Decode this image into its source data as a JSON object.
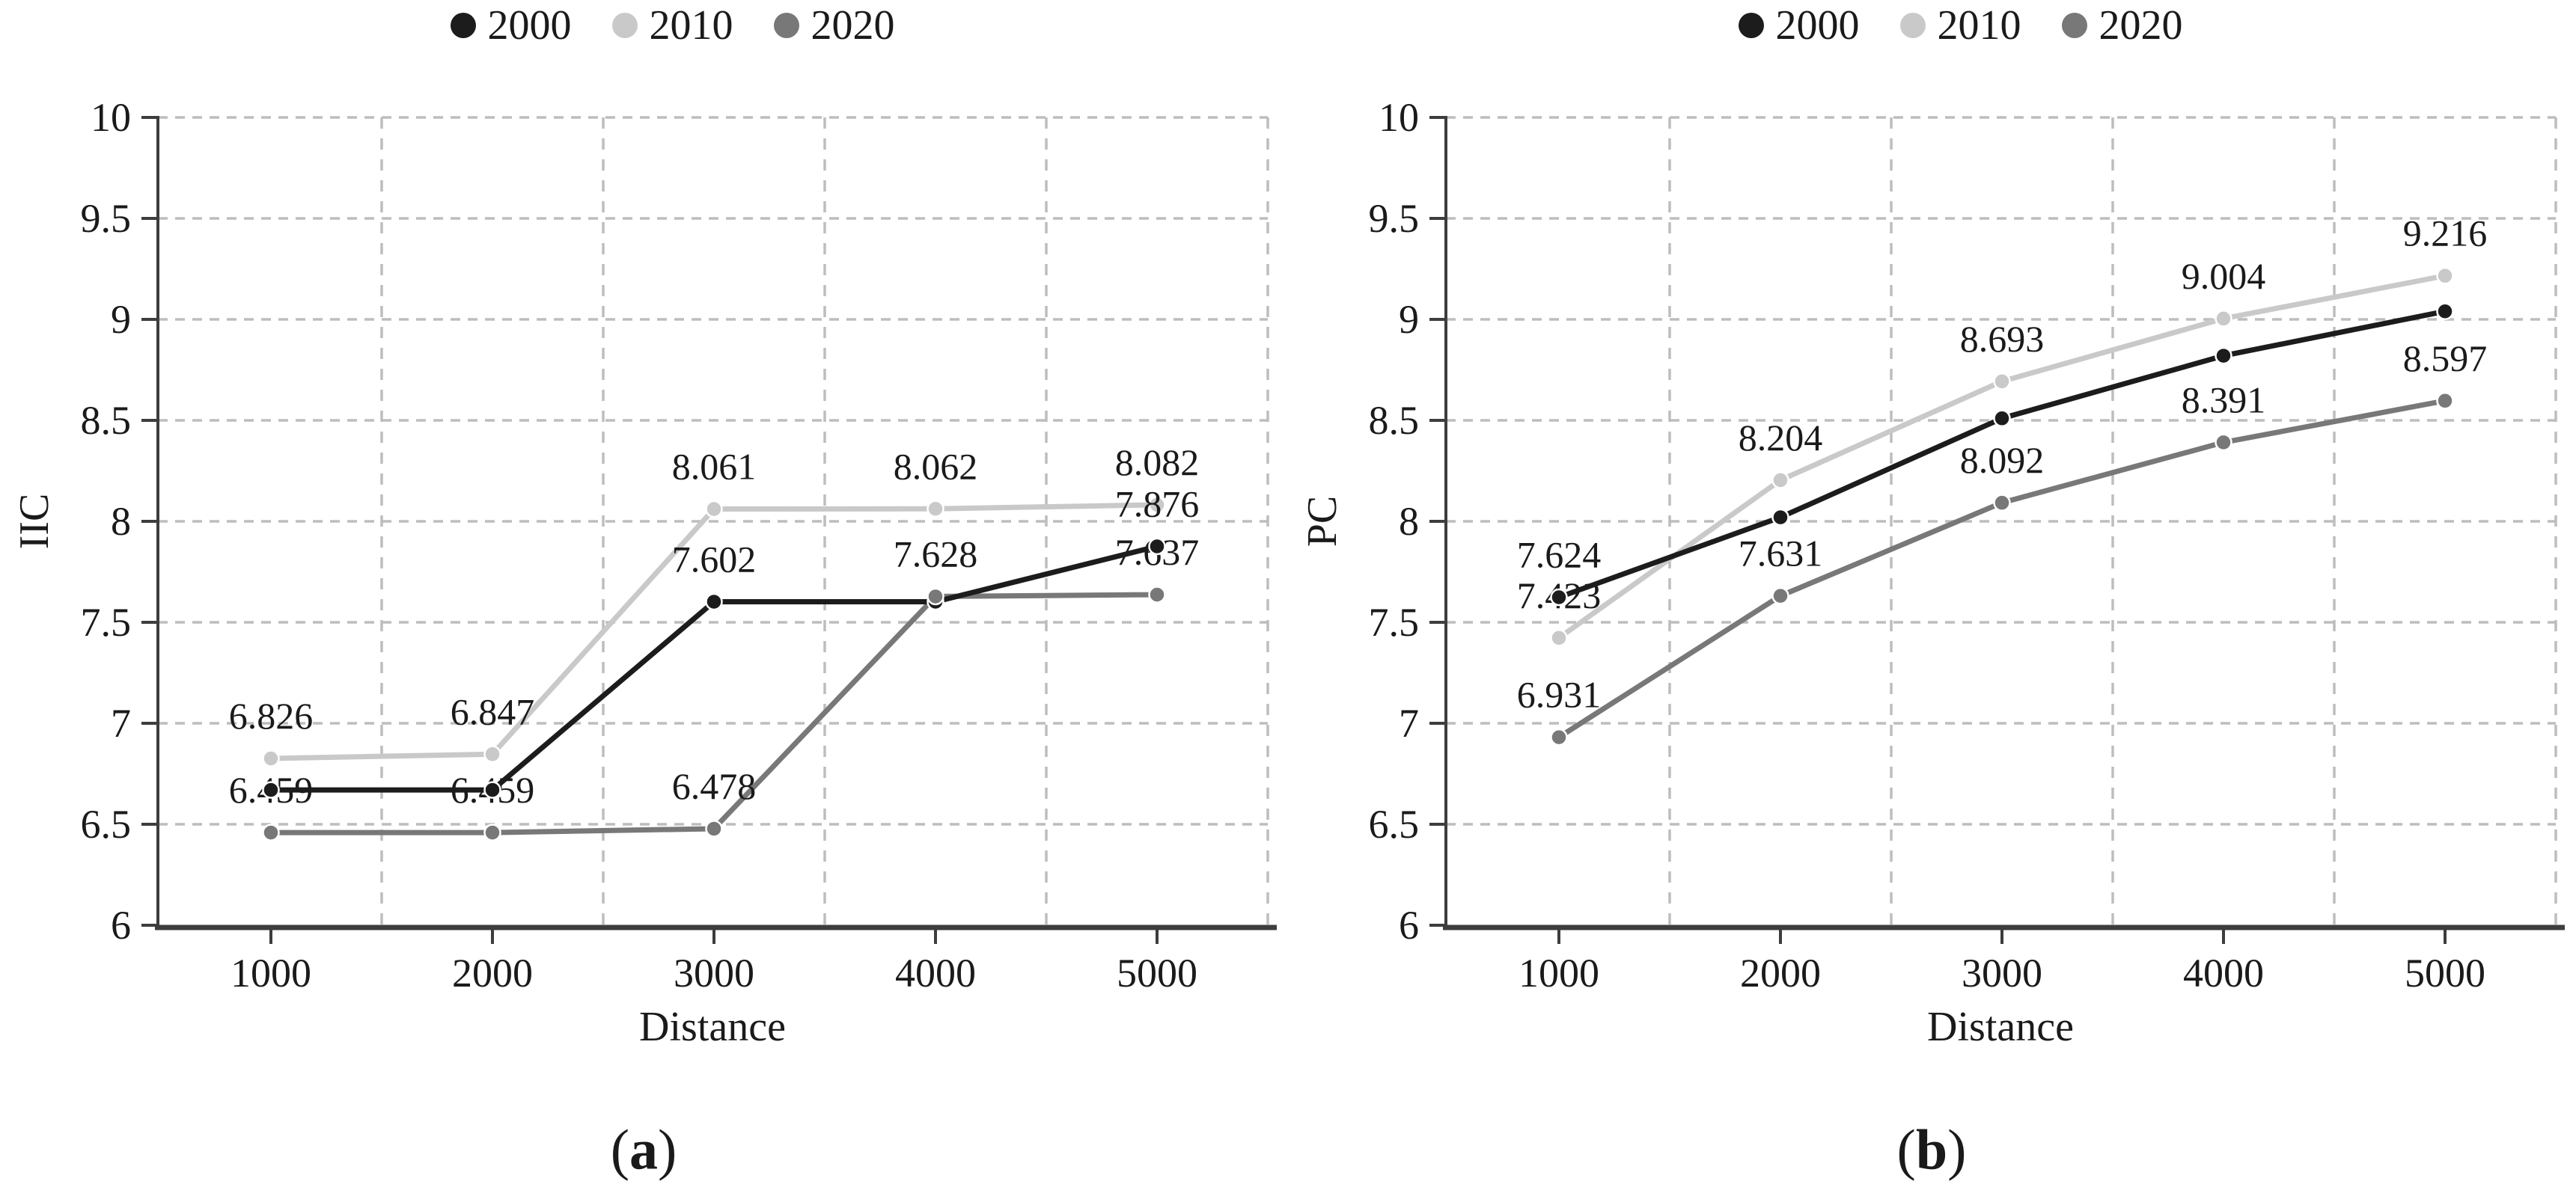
{
  "figure": {
    "panels": [
      {
        "caption": {
          "open": "(",
          "letter": "a",
          "close": ")"
        }
      },
      {
        "caption": {
          "open": "(",
          "letter": "b",
          "close": ")"
        }
      }
    ]
  },
  "colors": {
    "series_2000": "#1c1c1c",
    "series_2010": "#c9c9c9",
    "series_2020": "#787878",
    "gridline": "#bdbdbd",
    "axis": "#3d3d3d",
    "text": "#1a1a1a",
    "background": "#ffffff"
  },
  "chart_data": [
    {
      "type": "line",
      "title": "",
      "xlabel": "Distance",
      "ylabel": "IIC",
      "x": [
        1000,
        2000,
        3000,
        4000,
        5000
      ],
      "xtick_labels": [
        "1000",
        "2000",
        "3000",
        "4000",
        "5000"
      ],
      "ylim": [
        6,
        10
      ],
      "ytick_step": 0.5,
      "ytick_labels": [
        "6",
        "6.5",
        "7",
        "7.5",
        "8",
        "8.5",
        "9",
        "9.5",
        "10"
      ],
      "grid": true,
      "legend_position": "top",
      "series": [
        {
          "name": "2000",
          "color": "#1c1c1c",
          "values": [
            6.67,
            6.67,
            7.602,
            7.602,
            7.876
          ],
          "point_labels": [
            "",
            "",
            "7.602",
            "",
            "7.876"
          ]
        },
        {
          "name": "2010",
          "color": "#c9c9c9",
          "values": [
            6.826,
            6.847,
            8.061,
            8.062,
            8.082
          ],
          "point_labels": [
            "6.826",
            "6.847",
            "8.061",
            "8.062",
            "8.082"
          ]
        },
        {
          "name": "2020",
          "color": "#787878",
          "values": [
            6.459,
            6.459,
            6.478,
            7.628,
            7.637
          ],
          "point_labels": [
            "6.459",
            "6.459",
            "6.478",
            "7.628",
            "7.637"
          ]
        }
      ]
    },
    {
      "type": "line",
      "title": "",
      "xlabel": "Distance",
      "ylabel": "PC",
      "x": [
        1000,
        2000,
        3000,
        4000,
        5000
      ],
      "xtick_labels": [
        "1000",
        "2000",
        "3000",
        "4000",
        "5000"
      ],
      "ylim": [
        6,
        10
      ],
      "ytick_step": 0.5,
      "ytick_labels": [
        "6",
        "6.5",
        "7",
        "7.5",
        "8",
        "8.5",
        "9",
        "9.5",
        "10"
      ],
      "grid": true,
      "legend_position": "top",
      "series": [
        {
          "name": "2000",
          "color": "#1c1c1c",
          "values": [
            7.624,
            8.02,
            8.51,
            8.82,
            9.04
          ],
          "point_labels": [
            "7.624",
            "",
            "",
            "",
            ""
          ]
        },
        {
          "name": "2010",
          "color": "#c9c9c9",
          "values": [
            7.423,
            8.204,
            8.693,
            9.004,
            9.216
          ],
          "point_labels": [
            "7.423",
            "8.204",
            "8.693",
            "9.004",
            "9.216"
          ]
        },
        {
          "name": "2020",
          "color": "#787878",
          "values": [
            6.931,
            7.631,
            8.092,
            8.391,
            8.597
          ],
          "point_labels": [
            "6.931",
            "7.631",
            "8.092",
            "8.391",
            "8.597"
          ]
        }
      ]
    }
  ]
}
